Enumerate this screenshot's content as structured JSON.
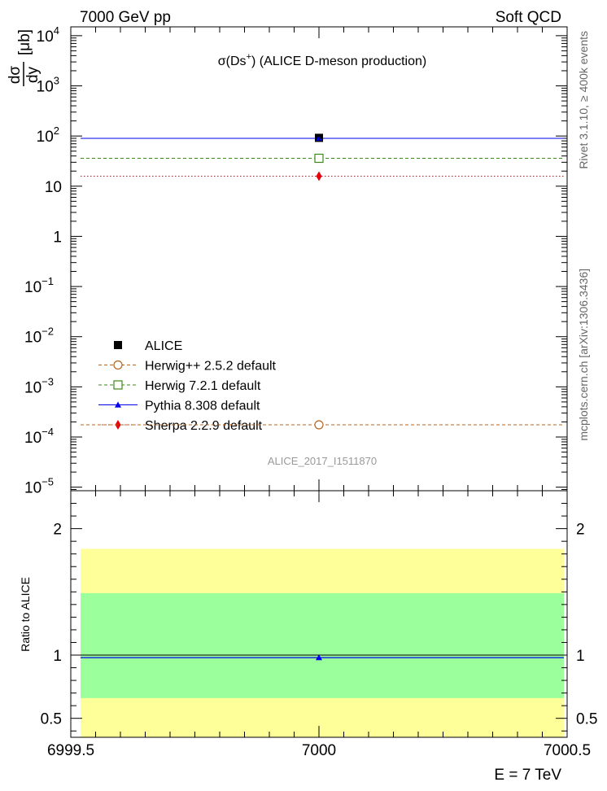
{
  "chart_data": {
    "type": "scatter",
    "header_left": "7000 GeV pp",
    "header_right": "Soft QCD",
    "title_prefix": "σ(Ds",
    "title_sup": "+",
    "title_suffix": ") (ALICE D-meson production)",
    "ylabel_num": "dσ",
    "ylabel_den": "dy",
    "ylabel_unit": "[μb]",
    "xlabel": "E = 7 TeV",
    "side_label_top": "Rivet 3.1.10, ≥ 400k events",
    "side_label_bottom": "mcplots.cern.ch [arXiv:1306.3436]",
    "watermark": "ALICE_2017_I1511870",
    "x_range": [
      6999.5,
      7000.5
    ],
    "x_ticks": [
      {
        "value": 6999.5,
        "label": "6999.5"
      },
      {
        "value": 7000,
        "label": "7000"
      },
      {
        "value": 7000.5,
        "label": "7000.5"
      }
    ],
    "y_range": [
      8.5e-06,
      15000
    ],
    "y_scale": "log",
    "y_ticks": [
      {
        "exp": 4,
        "label": "10",
        "sup": "4"
      },
      {
        "exp": 3,
        "label": "10",
        "sup": "3"
      },
      {
        "exp": 2,
        "label": "10",
        "sup": "2"
      },
      {
        "exp": 1,
        "label": "10",
        "sup": ""
      },
      {
        "exp": 0,
        "label": "1",
        "sup": ""
      },
      {
        "exp": -1,
        "label": "10",
        "sup": "−1"
      },
      {
        "exp": -2,
        "label": "10",
        "sup": "−2"
      },
      {
        "exp": -3,
        "label": "10",
        "sup": "−3"
      },
      {
        "exp": -4,
        "label": "10",
        "sup": "−4"
      },
      {
        "exp": -5,
        "label": "10",
        "sup": "−5"
      }
    ],
    "series": [
      {
        "name": "ALICE",
        "x": 7000,
        "y": 92,
        "marker": "filled-square",
        "color": "#000000",
        "line": "none"
      },
      {
        "name": "Herwig++ 2.5.2 default",
        "x": 7000,
        "y": 0.000175,
        "marker": "open-circle",
        "color": "#b5651d",
        "line": "dashed"
      },
      {
        "name": "Herwig 7.2.1 default",
        "x": 7000,
        "y": 36,
        "marker": "open-square",
        "color": "#3a8a1a",
        "line": "dashed"
      },
      {
        "name": "Pythia 8.308 default",
        "x": 7000,
        "y": 90,
        "marker": "filled-triangle",
        "color": "#0000ee",
        "line": "solid"
      },
      {
        "name": "Sherpa 2.2.9 default",
        "x": 7000,
        "y": 15.8,
        "marker": "filled-diamond",
        "color": "#e8000b",
        "line": "dotted"
      }
    ],
    "ratio": {
      "ylabel": "Ratio to ALICE",
      "y_range": [
        0.35,
        2.3
      ],
      "y_ticks": [
        {
          "value": 0.5,
          "label": "0.5"
        },
        {
          "value": 1,
          "label": "1"
        },
        {
          "value": 2,
          "label": "2"
        }
      ],
      "band_inner": [
        0.66,
        1.49
      ],
      "band_outer": [
        0.35,
        1.84
      ],
      "band_inner_color": "#9bff9b",
      "band_outer_color": "#ffff99",
      "pythia_ratio": 0.98
    }
  }
}
